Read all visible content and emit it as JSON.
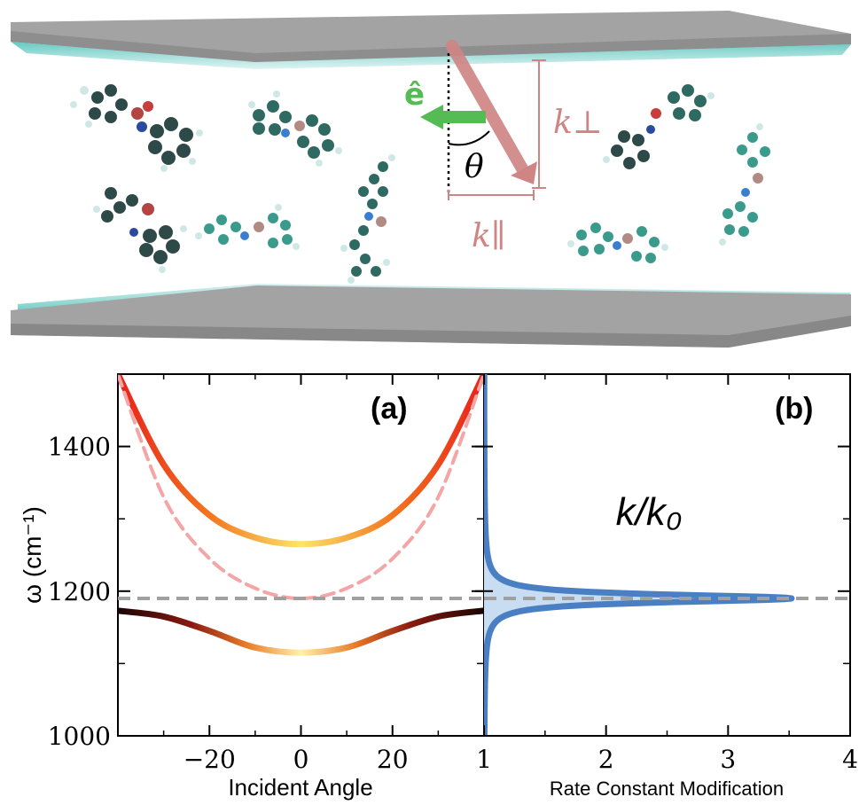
{
  "top_panel": {
    "polarization_label": "ê",
    "angle_label": "θ",
    "k_perp_label": "k⊥",
    "k_par_label": "k∥",
    "colors": {
      "mirror": "#9a9a9a",
      "cavity_glow": "#5fc6bf",
      "k_vector": "#d08585",
      "e_vector": "#55bb55"
    }
  },
  "chart_data": [
    {
      "type": "line",
      "panel_label": "(a)",
      "xlabel": "Incident Angle",
      "ylabel": "ω (cm⁻¹)",
      "xlim": [
        -40,
        40
      ],
      "ylim": [
        1000,
        1500
      ],
      "xticks": [
        -20,
        0,
        20
      ],
      "xtick_labels": [
        "−20",
        "0",
        "20"
      ],
      "yticks": [
        1000,
        1200,
        1400
      ],
      "ytick_labels": [
        "1000",
        "1200",
        "1400"
      ],
      "reference_line": {
        "y": 1190,
        "style": "dashed",
        "color": "#a0a0a0"
      },
      "series": [
        {
          "style": "upper-polariton",
          "colormap": "hot",
          "x": [
            -40,
            -30,
            -20,
            -10,
            0,
            10,
            20,
            30,
            40
          ],
          "y": [
            1500,
            1375,
            1305,
            1274,
            1265,
            1274,
            1305,
            1375,
            1500
          ]
        },
        {
          "style": "cavity-mode-dashed",
          "color": "#f4a5a5",
          "x": [
            -40,
            -30,
            -20,
            -10,
            0,
            10,
            20,
            30,
            40
          ],
          "y": [
            1500,
            1330,
            1245,
            1204,
            1190,
            1204,
            1245,
            1330,
            1500
          ]
        },
        {
          "style": "lower-polariton",
          "colormap": "hot",
          "x": [
            -40,
            -30,
            -20,
            -10,
            0,
            10,
            20,
            30,
            40
          ],
          "y": [
            1173,
            1165,
            1145,
            1122,
            1115,
            1122,
            1145,
            1165,
            1173
          ]
        }
      ]
    },
    {
      "type": "area",
      "panel_label": "(b)",
      "xlabel": "Rate Constant Modification",
      "annotation": "k/k₀",
      "xlim": [
        1,
        4
      ],
      "ylim": [
        1000,
        1500
      ],
      "xticks": [
        1,
        2,
        3,
        4
      ],
      "xtick_labels": [
        "1",
        "2",
        "3",
        "4"
      ],
      "peak": {
        "x": 3.52,
        "y": 1190
      },
      "reference_line": {
        "y": 1190,
        "style": "dashed",
        "color": "#a0a0a0"
      },
      "series": [
        {
          "style": "lorentzian",
          "color": "#4a7fc4",
          "fill": "#c8dcf2",
          "baseline": 1,
          "amplitude": 2.52,
          "center": 1190,
          "width": 6.5
        }
      ]
    }
  ]
}
